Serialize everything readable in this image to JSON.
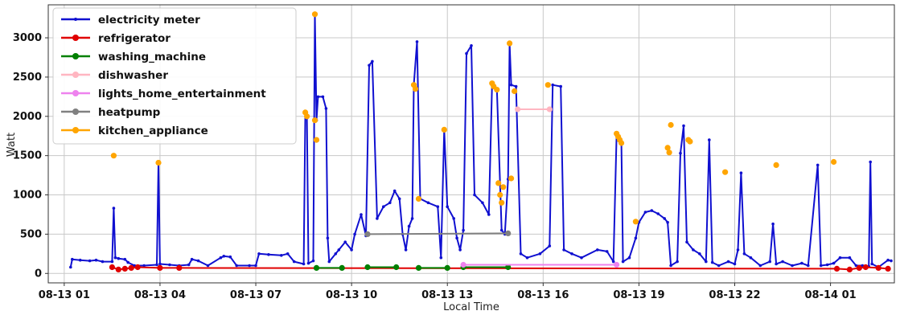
{
  "chart_data": {
    "type": "line",
    "xlabel": "Local Time",
    "ylabel": "Watt",
    "xlim": [
      1.5,
      28.0
    ],
    "ylim": [
      -120,
      3420
    ],
    "x_unit": "hours since 08-13 00:00",
    "xticks": [
      {
        "value": 2,
        "label": "08-13 01"
      },
      {
        "value": 5,
        "label": "08-13 04"
      },
      {
        "value": 8,
        "label": "08-13 07"
      },
      {
        "value": 11,
        "label": "08-13 10"
      },
      {
        "value": 14,
        "label": "08-13 13"
      },
      {
        "value": 17,
        "label": "08-13 16"
      },
      {
        "value": 20,
        "label": "08-13 19"
      },
      {
        "value": 23,
        "label": "08-13 22"
      },
      {
        "value": 26,
        "label": "08-14 01"
      }
    ],
    "yticks": [
      0,
      500,
      1000,
      1500,
      2000,
      2500,
      3000
    ],
    "grid": true,
    "legend_position": "top-left",
    "series": [
      {
        "name": "electricity meter",
        "color": "#1010d0",
        "style": "line",
        "points": [
          [
            2.2,
            80
          ],
          [
            2.25,
            180
          ],
          [
            2.5,
            170
          ],
          [
            2.8,
            160
          ],
          [
            3.0,
            170
          ],
          [
            3.2,
            150
          ],
          [
            3.5,
            150
          ],
          [
            3.55,
            830
          ],
          [
            3.6,
            200
          ],
          [
            3.7,
            190
          ],
          [
            3.9,
            180
          ],
          [
            4.0,
            140
          ],
          [
            4.2,
            100
          ],
          [
            4.5,
            100
          ],
          [
            4.9,
            110
          ],
          [
            4.95,
            1410
          ],
          [
            5.0,
            120
          ],
          [
            5.3,
            110
          ],
          [
            5.6,
            100
          ],
          [
            5.9,
            110
          ],
          [
            6.0,
            180
          ],
          [
            6.2,
            160
          ],
          [
            6.5,
            100
          ],
          [
            6.9,
            200
          ],
          [
            7.0,
            220
          ],
          [
            7.2,
            210
          ],
          [
            7.4,
            100
          ],
          [
            7.8,
            100
          ],
          [
            8.0,
            100
          ],
          [
            8.1,
            250
          ],
          [
            8.4,
            240
          ],
          [
            8.8,
            230
          ],
          [
            9.0,
            250
          ],
          [
            9.2,
            150
          ],
          [
            9.5,
            120
          ],
          [
            9.55,
            2050
          ],
          [
            9.6,
            1980
          ],
          [
            9.65,
            130
          ],
          [
            9.8,
            160
          ],
          [
            9.85,
            3300
          ],
          [
            9.9,
            1950
          ],
          [
            9.95,
            2250
          ],
          [
            10.1,
            2250
          ],
          [
            10.2,
            2100
          ],
          [
            10.25,
            450
          ],
          [
            10.3,
            150
          ],
          [
            10.5,
            250
          ],
          [
            10.6,
            300
          ],
          [
            10.8,
            400
          ],
          [
            11.0,
            300
          ],
          [
            11.1,
            500
          ],
          [
            11.3,
            750
          ],
          [
            11.45,
            480
          ],
          [
            11.55,
            2650
          ],
          [
            11.65,
            2700
          ],
          [
            11.8,
            700
          ],
          [
            12.0,
            850
          ],
          [
            12.2,
            900
          ],
          [
            12.35,
            1050
          ],
          [
            12.5,
            950
          ],
          [
            12.6,
            500
          ],
          [
            12.7,
            300
          ],
          [
            12.8,
            600
          ],
          [
            12.9,
            700
          ],
          [
            12.95,
            2400
          ],
          [
            13.05,
            2950
          ],
          [
            13.15,
            950
          ],
          [
            13.4,
            900
          ],
          [
            13.7,
            850
          ],
          [
            13.8,
            200
          ],
          [
            13.9,
            1830
          ],
          [
            14.0,
            850
          ],
          [
            14.2,
            700
          ],
          [
            14.3,
            450
          ],
          [
            14.4,
            300
          ],
          [
            14.5,
            550
          ],
          [
            14.6,
            2800
          ],
          [
            14.75,
            2900
          ],
          [
            14.85,
            1000
          ],
          [
            15.1,
            900
          ],
          [
            15.3,
            750
          ],
          [
            15.4,
            2400
          ],
          [
            15.55,
            2350
          ],
          [
            15.7,
            550
          ],
          [
            15.8,
            500
          ],
          [
            15.9,
            1200
          ],
          [
            15.95,
            2930
          ],
          [
            16.0,
            2400
          ],
          [
            16.15,
            2380
          ],
          [
            16.3,
            250
          ],
          [
            16.5,
            200
          ],
          [
            16.9,
            250
          ],
          [
            17.2,
            350
          ],
          [
            17.3,
            2400
          ],
          [
            17.55,
            2380
          ],
          [
            17.65,
            300
          ],
          [
            17.9,
            250
          ],
          [
            18.2,
            200
          ],
          [
            18.7,
            300
          ],
          [
            19.0,
            280
          ],
          [
            19.2,
            150
          ],
          [
            19.3,
            1750
          ],
          [
            19.45,
            1650
          ],
          [
            19.5,
            150
          ],
          [
            19.7,
            200
          ],
          [
            19.9,
            450
          ],
          [
            20.0,
            650
          ],
          [
            20.2,
            780
          ],
          [
            20.4,
            800
          ],
          [
            20.6,
            760
          ],
          [
            20.8,
            700
          ],
          [
            20.9,
            650
          ],
          [
            21.0,
            100
          ],
          [
            21.2,
            150
          ],
          [
            21.3,
            1530
          ],
          [
            21.4,
            1880
          ],
          [
            21.5,
            400
          ],
          [
            21.7,
            300
          ],
          [
            21.9,
            250
          ],
          [
            22.1,
            150
          ],
          [
            22.2,
            1700
          ],
          [
            22.3,
            140
          ],
          [
            22.5,
            100
          ],
          [
            22.8,
            150
          ],
          [
            23.0,
            120
          ],
          [
            23.1,
            300
          ],
          [
            23.2,
            1280
          ],
          [
            23.3,
            250
          ],
          [
            23.5,
            200
          ],
          [
            23.8,
            100
          ],
          [
            24.1,
            150
          ],
          [
            24.2,
            630
          ],
          [
            24.3,
            120
          ],
          [
            24.5,
            150
          ],
          [
            24.8,
            100
          ],
          [
            25.1,
            130
          ],
          [
            25.3,
            100
          ],
          [
            25.6,
            1380
          ],
          [
            25.7,
            100
          ],
          [
            25.9,
            110
          ],
          [
            26.1,
            130
          ],
          [
            26.3,
            200
          ],
          [
            26.6,
            200
          ],
          [
            26.8,
            100
          ],
          [
            27.0,
            100
          ],
          [
            27.2,
            90
          ],
          [
            27.25,
            1420
          ],
          [
            27.3,
            120
          ],
          [
            27.5,
            80
          ],
          [
            27.8,
            170
          ],
          [
            27.9,
            160
          ]
        ]
      },
      {
        "name": "refrigerator",
        "color": "#e00000",
        "style": "line+marker",
        "points": [
          [
            3.5,
            80
          ],
          [
            3.7,
            50
          ],
          [
            3.9,
            60
          ],
          [
            4.1,
            70
          ],
          [
            4.3,
            80
          ],
          [
            5.0,
            70
          ],
          [
            5.6,
            70
          ],
          [
            26.2,
            60
          ],
          [
            26.6,
            50
          ],
          [
            26.9,
            70
          ],
          [
            27.1,
            80
          ],
          [
            27.5,
            70
          ],
          [
            27.8,
            60
          ]
        ]
      },
      {
        "name": "washing_machine",
        "color": "#008000",
        "style": "line+marker",
        "points": [
          [
            9.9,
            70
          ],
          [
            10.7,
            70
          ],
          [
            null,
            null
          ],
          [
            11.5,
            80
          ],
          [
            12.4,
            80
          ],
          [
            null,
            null
          ],
          [
            13.1,
            70
          ],
          [
            14.0,
            70
          ],
          [
            null,
            null
          ],
          [
            14.5,
            80
          ],
          [
            15.9,
            80
          ]
        ]
      },
      {
        "name": "dishwasher",
        "color": "#ffb6c1",
        "style": "line+marker",
        "points": [
          [
            16.2,
            2090
          ],
          [
            17.2,
            2090
          ]
        ]
      },
      {
        "name": "lights_home_entertainment",
        "color": "#ee82ee",
        "style": "line+marker",
        "points": [
          [
            14.5,
            110
          ],
          [
            19.3,
            110
          ]
        ]
      },
      {
        "name": "heatpump",
        "color": "#808080",
        "style": "line+marker",
        "points": [
          [
            11.5,
            500
          ],
          [
            15.9,
            510
          ]
        ]
      },
      {
        "name": "kitchen_appliance",
        "color": "#ffa500",
        "style": "marker",
        "points": [
          [
            3.55,
            1500
          ],
          [
            4.95,
            1410
          ],
          [
            9.55,
            2050
          ],
          [
            9.6,
            2000
          ],
          [
            9.85,
            3300
          ],
          [
            9.85,
            1950
          ],
          [
            9.9,
            1700
          ],
          [
            12.95,
            2400
          ],
          [
            13.0,
            2350
          ],
          [
            13.1,
            950
          ],
          [
            13.9,
            1830
          ],
          [
            15.4,
            2420
          ],
          [
            15.45,
            2380
          ],
          [
            15.55,
            2340
          ],
          [
            15.6,
            1150
          ],
          [
            15.65,
            1000
          ],
          [
            15.7,
            900
          ],
          [
            15.75,
            1100
          ],
          [
            15.95,
            2930
          ],
          [
            16.0,
            1210
          ],
          [
            16.1,
            2320
          ],
          [
            17.15,
            2400
          ],
          [
            19.3,
            1780
          ],
          [
            19.35,
            1740
          ],
          [
            19.4,
            1700
          ],
          [
            19.45,
            1660
          ],
          [
            19.9,
            660
          ],
          [
            20.9,
            1600
          ],
          [
            20.95,
            1540
          ],
          [
            21.0,
            1890
          ],
          [
            21.55,
            1700
          ],
          [
            21.6,
            1680
          ],
          [
            22.7,
            1290
          ],
          [
            24.3,
            1380
          ],
          [
            26.1,
            1420
          ]
        ]
      }
    ]
  }
}
